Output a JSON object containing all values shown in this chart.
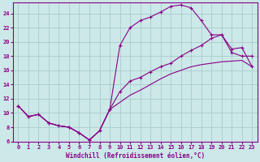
{
  "xlabel": "Windchill (Refroidissement éolien,°C)",
  "bg_color": "#cce8e8",
  "grid_color": "#aacccc",
  "line_color": "#880088",
  "xlim": [
    -0.5,
    23.5
  ],
  "ylim": [
    6,
    25.5
  ],
  "xticks": [
    0,
    1,
    2,
    3,
    4,
    5,
    6,
    7,
    8,
    9,
    10,
    11,
    12,
    13,
    14,
    15,
    16,
    17,
    18,
    19,
    20,
    21,
    22,
    23
  ],
  "yticks": [
    6,
    8,
    10,
    12,
    14,
    16,
    18,
    20,
    22,
    24
  ],
  "curve1_x": [
    0,
    1,
    2,
    3,
    4,
    5,
    6,
    7,
    8,
    9,
    10,
    11,
    12,
    13,
    14,
    15,
    16,
    17,
    18,
    19,
    20,
    21,
    22,
    23
  ],
  "curve1_y": [
    11.0,
    9.5,
    9.8,
    8.6,
    8.2,
    8.0,
    7.2,
    6.2,
    7.5,
    10.5,
    19.5,
    22.0,
    23.0,
    23.5,
    24.2,
    25.0,
    25.2,
    24.8,
    23.0,
    21.0,
    21.0,
    18.5,
    18.0,
    18.0
  ],
  "curve2_x": [
    0,
    1,
    2,
    3,
    4,
    5,
    6,
    7,
    8,
    9,
    10,
    11,
    12,
    13,
    14,
    15,
    16,
    17,
    18,
    19,
    20,
    21,
    22,
    23
  ],
  "curve2_y": [
    11.0,
    9.5,
    9.8,
    8.6,
    8.2,
    8.0,
    7.2,
    6.2,
    7.5,
    10.5,
    11.5,
    12.5,
    13.2,
    14.0,
    14.8,
    15.5,
    16.0,
    16.5,
    16.8,
    17.0,
    17.2,
    17.3,
    17.4,
    16.5
  ],
  "curve3_x": [
    0,
    1,
    2,
    3,
    4,
    5,
    6,
    7,
    8,
    9,
    10,
    11,
    12,
    13,
    14,
    15,
    16,
    17,
    18,
    19,
    20,
    21,
    22,
    23
  ],
  "curve3_y": [
    11.0,
    9.5,
    9.8,
    8.6,
    8.2,
    8.0,
    7.2,
    6.2,
    7.5,
    10.5,
    13.0,
    14.5,
    15.0,
    15.8,
    16.5,
    17.0,
    18.0,
    18.8,
    19.5,
    20.5,
    21.0,
    19.0,
    19.2,
    16.5
  ],
  "curve1_has_markers": true,
  "curve2_has_markers": false,
  "curve3_has_markers": true
}
